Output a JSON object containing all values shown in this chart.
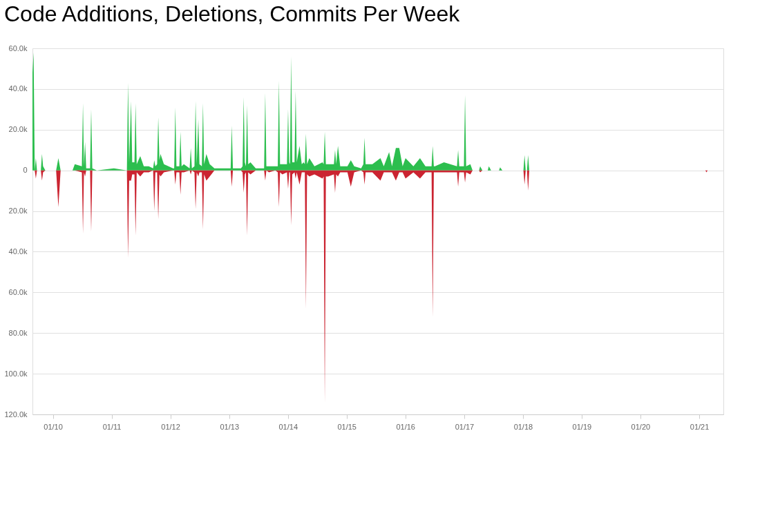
{
  "chart_data": {
    "type": "area",
    "title": "Code Additions, Deletions, Commits Per Week",
    "x": [
      "2009-08-27",
      "2009-09-03",
      "2009-09-10",
      "2009-09-17",
      "2009-09-24",
      "2009-10-18",
      "2009-10-25",
      "2009-11-01",
      "2009-11-15",
      "2010-01-21",
      "2010-02-04",
      "2010-02-18",
      "2010-05-03",
      "2010-05-17",
      "2010-06-30",
      "2010-07-07",
      "2010-07-13",
      "2010-07-20",
      "2010-07-27",
      "2010-08-20",
      "2010-08-27",
      "2010-09-03",
      "2010-10-01",
      "2011-01-15",
      "2011-04-06",
      "2011-04-13",
      "2011-04-20",
      "2011-05-02",
      "2011-05-09",
      "2011-05-23",
      "2011-05-30",
      "2011-06-06",
      "2011-06-28",
      "2011-07-20",
      "2011-08-20",
      "2011-09-16",
      "2011-09-23",
      "2011-09-30",
      "2011-10-11",
      "2011-10-18",
      "2011-10-25",
      "2011-11-01",
      "2011-11-22",
      "2012-01-18",
      "2012-01-25",
      "2012-02-01",
      "2012-02-08",
      "2012-02-26",
      "2012-03-04",
      "2012-03-11",
      "2012-03-25",
      "2012-04-30",
      "2012-05-07",
      "2012-05-14",
      "2012-05-30",
      "2012-06-06",
      "2012-06-13",
      "2012-06-23",
      "2012-06-30",
      "2012-07-15",
      "2012-07-22",
      "2012-07-29",
      "2012-08-12",
      "2012-09-02",
      "2012-10-01",
      "2012-11-15",
      "2013-01-10",
      "2013-01-17",
      "2013-01-24",
      "2013-03-15",
      "2013-03-25",
      "2013-04-01",
      "2013-04-08",
      "2013-04-15",
      "2013-04-22",
      "2013-04-29",
      "2013-05-13",
      "2013-06-15",
      "2013-07-25",
      "2013-08-06",
      "2013-08-13",
      "2013-08-20",
      "2013-09-05",
      "2013-10-15",
      "2013-10-30",
      "2013-11-06",
      "2013-11-13",
      "2013-11-27",
      "2013-12-26",
      "2014-01-02",
      "2014-01-09",
      "2014-01-14",
      "2014-01-21",
      "2014-01-28",
      "2014-02-11",
      "2014-02-18",
      "2014-02-25",
      "2014-03-14",
      "2014-03-28",
      "2014-04-09",
      "2014-04-16",
      "2014-04-23",
      "2014-04-30",
      "2014-05-14",
      "2014-06-15",
      "2014-08-04",
      "2014-08-11",
      "2014-08-18",
      "2014-08-25",
      "2014-09-08",
      "2014-10-14",
      "2014-10-21",
      "2014-10-28",
      "2014-11-08",
      "2014-11-22",
      "2015-01-06",
      "2015-01-27",
      "2015-02-17",
      "2015-04-01",
      "2015-04-15",
      "2015-04-22",
      "2015-04-29",
      "2015-05-13",
      "2015-06-10",
      "2015-07-30",
      "2015-08-20",
      "2015-09-22",
      "2015-10-10",
      "2015-11-03",
      "2015-11-24",
      "2015-12-15",
      "2016-01-02",
      "2016-02-20",
      "2016-04-01",
      "2016-05-05",
      "2016-06-05",
      "2016-06-12",
      "2016-06-19",
      "2016-06-26",
      "2016-07-03",
      "2016-08-28",
      "2016-10-06",
      "2016-11-17",
      "2016-11-24",
      "2016-12-01",
      "2016-12-30",
      "2017-01-06",
      "2017-01-13",
      "2017-02-08",
      "2017-02-22",
      "2017-04-03",
      "2017-04-10",
      "2017-04-24",
      "2017-05-27",
      "2017-06-03",
      "2017-06-17",
      "2017-08-05",
      "2017-08-12",
      "2017-08-26",
      "2018-01-04",
      "2018-01-11",
      "2018-01-18",
      "2018-01-26",
      "2018-02-02",
      "2018-02-09",
      "2021-02-08",
      "2021-02-15",
      "2021-02-22",
      "2021-05-31"
    ],
    "series": [
      {
        "color": "#2cbe4e",
        "values": [
          48000,
          58000,
          0,
          6000,
          0,
          0,
          8000,
          2000,
          0,
          0,
          6000,
          0,
          0,
          3000,
          2000,
          33000,
          2000,
          14000,
          1000,
          1000,
          30000,
          1000,
          0,
          1000,
          0,
          43000,
          4000,
          34000,
          4000,
          4000,
          33000,
          3000,
          7000,
          2000,
          2000,
          1000,
          5000,
          2000,
          3000,
          26000,
          5000,
          8000,
          3000,
          1000,
          1000,
          31000,
          2000,
          2000,
          19000,
          2000,
          3000,
          1000,
          11000,
          1000,
          2000,
          34000,
          3000,
          25000,
          3000,
          2000,
          33000,
          3000,
          8000,
          3000,
          1000,
          1000,
          1000,
          22000,
          1000,
          1000,
          2000,
          36000,
          4000,
          2000,
          32000,
          3000,
          4000,
          1000,
          1000,
          1000,
          38000,
          2000,
          2000,
          2000,
          2000,
          44000,
          3000,
          3000,
          3000,
          30000,
          4000,
          3000,
          56000,
          4000,
          4000,
          39000,
          4000,
          12000,
          3000,
          4000,
          3000,
          18000,
          3000,
          6000,
          2000,
          4000,
          3000,
          19000,
          3000,
          3000,
          3000,
          10000,
          3000,
          12000,
          2000,
          2000,
          5000,
          2000,
          1000,
          3000,
          16000,
          3000,
          3000,
          3000,
          6000,
          2000,
          9000,
          2000,
          11000,
          11000,
          2000,
          6000,
          2000,
          6000,
          2000,
          2000,
          2000,
          12000,
          2000,
          2000,
          4000,
          3000,
          2000,
          10000,
          2000,
          2000,
          37000,
          2000,
          3000,
          0,
          0,
          2000,
          0,
          0,
          2000,
          0,
          0,
          1500,
          0,
          0,
          7500,
          0,
          0,
          7500,
          0,
          0,
          0,
          0,
          0
        ]
      },
      {
        "color": "#cb2431",
        "values": [
          0,
          0,
          0,
          -4000,
          0,
          0,
          -5000,
          -1000,
          0,
          0,
          -18000,
          0,
          0,
          0,
          -1000,
          -31000,
          -1000,
          -3000,
          0,
          0,
          -30000,
          0,
          0,
          0,
          0,
          -43000,
          -5000,
          -5000,
          -2000,
          -2000,
          -32000,
          -1000,
          -3000,
          -1000,
          -1000,
          0,
          -20000,
          -1000,
          -1000,
          -24000,
          -2000,
          -3000,
          -1000,
          0,
          0,
          -7000,
          -1000,
          -1000,
          -12000,
          -1000,
          -1000,
          0,
          -2000,
          0,
          -1000,
          -19000,
          -1000,
          -3000,
          -1000,
          -1000,
          -29000,
          -2000,
          -5000,
          -3000,
          0,
          0,
          0,
          -8000,
          0,
          0,
          -1000,
          -11000,
          -2000,
          -1000,
          -32000,
          -1000,
          -2000,
          0,
          0,
          0,
          -5000,
          0,
          -1000,
          0,
          -1000,
          -18000,
          -1000,
          -2000,
          -1000,
          -9000,
          -1000,
          -1000,
          -27000,
          -2000,
          -1000,
          -4000,
          -1000,
          -7000,
          -1000,
          -1000,
          -1000,
          -68000,
          -2000,
          -3000,
          -2000,
          -4000,
          -3000,
          -114000,
          -3000,
          -3000,
          -2000,
          -11000,
          -2000,
          -3000,
          -1000,
          -1000,
          -8000,
          -1000,
          0,
          -1000,
          -7000,
          -1000,
          -1000,
          -1000,
          -5000,
          -1000,
          -1000,
          -1000,
          -5000,
          -1000,
          -1000,
          -4000,
          -1000,
          -4000,
          -1000,
          -1000,
          -1000,
          -72000,
          -1000,
          -1000,
          -1000,
          -1000,
          -1000,
          -8000,
          -1000,
          -1000,
          -6000,
          -1000,
          -2000,
          0,
          0,
          -1000,
          0,
          0,
          0,
          0,
          0,
          0,
          0,
          0,
          -7000,
          0,
          0,
          -10000,
          0,
          0,
          -1000,
          0,
          0
        ]
      }
    ],
    "xlim": [
      "2009-08-27",
      "2021-05-31"
    ],
    "xticks": [
      {
        "value": "2010-01-01",
        "label": "01/10"
      },
      {
        "value": "2011-01-01",
        "label": "01/11"
      },
      {
        "value": "2012-01-01",
        "label": "01/12"
      },
      {
        "value": "2013-01-01",
        "label": "01/13"
      },
      {
        "value": "2014-01-01",
        "label": "01/14"
      },
      {
        "value": "2015-01-01",
        "label": "01/15"
      },
      {
        "value": "2016-01-01",
        "label": "01/16"
      },
      {
        "value": "2017-01-01",
        "label": "01/17"
      },
      {
        "value": "2018-01-01",
        "label": "01/18"
      },
      {
        "value": "2019-01-01",
        "label": "01/19"
      },
      {
        "value": "2020-01-01",
        "label": "01/20"
      },
      {
        "value": "2021-01-01",
        "label": "01/21"
      }
    ],
    "ylim": [
      -120000,
      60000
    ],
    "yticks": [
      {
        "value": 60000,
        "label": "60.0k"
      },
      {
        "value": 40000,
        "label": "40.0k"
      },
      {
        "value": 20000,
        "label": "20.0k"
      },
      {
        "value": 0,
        "label": "0"
      },
      {
        "value": -20000,
        "label": "20.0k"
      },
      {
        "value": -40000,
        "label": "40.0k"
      },
      {
        "value": -60000,
        "label": "60.0k"
      },
      {
        "value": -80000,
        "label": "80.0k"
      },
      {
        "value": -100000,
        "label": "100.0k"
      },
      {
        "value": -120000,
        "label": "120.0k"
      }
    ],
    "grid": "y"
  }
}
